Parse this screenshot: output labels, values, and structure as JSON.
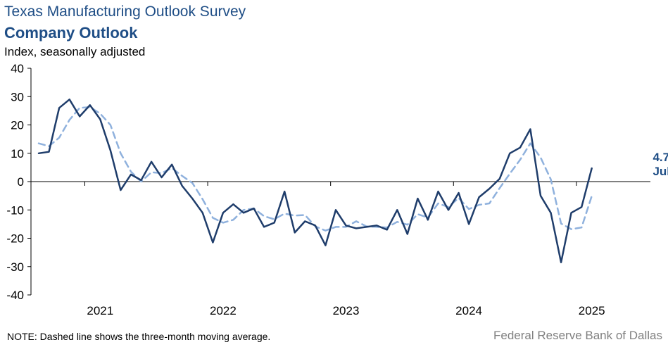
{
  "header": {
    "title": "Texas Manufacturing Outlook Survey",
    "subtitle": "Company Outlook",
    "units": "Index, seasonally adjusted"
  },
  "footer": {
    "note": "NOTE: Dashed line shows the three-month  moving average.",
    "source": "Federal Reserve Bank of Dallas"
  },
  "colors": {
    "index_line": "#1f3d6b",
    "moving_average_line": "#8fb1dd",
    "text_accent": "#1f4e86",
    "axis": "#000000"
  },
  "chart_data": {
    "type": "line",
    "title": "Company Outlook",
    "ylabel": "Index, seasonally adjusted",
    "ylim": [
      -40,
      40
    ],
    "yticks": [
      40,
      30,
      20,
      10,
      0,
      -10,
      -20,
      -30,
      -40
    ],
    "x_start": "2020-08",
    "x_end": "2025-07",
    "x_tick_labels": [
      {
        "label": "2021",
        "month": 6
      },
      {
        "label": "2022",
        "month": 18
      },
      {
        "label": "2023",
        "month": 30
      },
      {
        "label": "2024",
        "month": 42
      },
      {
        "label": "2025",
        "month": 54
      }
    ],
    "grid": false,
    "series": [
      {
        "style": "solid",
        "values": [
          10,
          10.5,
          26,
          29,
          23,
          27,
          22,
          11,
          -3,
          2.5,
          0.5,
          7,
          1.5,
          6,
          -1.5,
          -6,
          -11,
          -21.5,
          -11,
          -8,
          -11,
          -9.5,
          -16,
          -14.5,
          -3.5,
          -18,
          -14,
          -15.5,
          -22.5,
          -10,
          -15.5,
          -16.5,
          -16,
          -15.5,
          -17,
          -10,
          -18.5,
          -6,
          -13.5,
          -3.5,
          -10,
          -4,
          -15,
          -5.5,
          -2.5,
          1,
          10,
          12,
          18.5,
          -5,
          -11,
          -28.5,
          -11,
          -9,
          4.7
        ]
      },
      {
        "style": "dashed",
        "values": [
          13.5,
          12.5,
          15.5,
          21.8,
          26.0,
          26.3,
          24.0,
          20.0,
          10.0,
          3.5,
          0.0,
          3.3,
          3.0,
          4.8,
          2.0,
          -0.5,
          -6.2,
          -12.8,
          -14.5,
          -13.5,
          -10.0,
          -9.5,
          -12.2,
          -13.3,
          -11.3,
          -12.0,
          -11.8,
          -15.8,
          -17.3,
          -16.0,
          -16.0,
          -14.0,
          -15.8,
          -16.0,
          -16.2,
          -14.2,
          -15.2,
          -11.5,
          -12.7,
          -7.7,
          -9.0,
          -5.8,
          -9.7,
          -8.2,
          -7.7,
          -2.3,
          2.8,
          7.7,
          13.5,
          8.5,
          0.8,
          -14.8,
          -16.8,
          -16.2,
          -5.1
        ]
      }
    ],
    "annotations": [
      {
        "label": "4.7",
        "month": 59
      },
      {
        "label": "July",
        "month": 59
      }
    ]
  }
}
